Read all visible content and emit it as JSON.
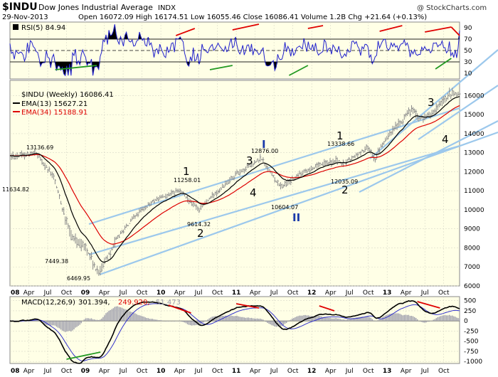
{
  "header": {
    "symbol": "$INDU",
    "name": "Dow Jones Industrial Average",
    "exchange": "INDX",
    "watermark": "@ StockCharts.com",
    "date": "29-Nov-2013",
    "ohlc_line": "Open 16072.09  High 16174.51  Low 16055.46  Close 16086.41  Volume 1.2B  Chg +21.64 (+0.13%)"
  },
  "legend": {
    "rsi": "RSI(5) 84.94",
    "price": "$INDU (Weekly) 16086.41",
    "ema13": "EMA(13) 15627.21",
    "ema34": "EMA(34) 15188.91",
    "macd_name": "MACD(12,26,9)",
    "macd_v1": "301.394,",
    "macd_v2": "249.920,",
    "macd_v3": "51.473"
  },
  "colors": {
    "panel_bg": "#ffffe6",
    "rsi_line": "#2222cc",
    "ema13": "#000000",
    "ema34": "#dd0000",
    "price_bars": "#8a8a8a",
    "channel": "#9cc8ec",
    "divergence_red": "#e00000",
    "divergence_green": "#229922",
    "wave_label_blue": "#1a3aaa",
    "macd_hist": "#9a9aaa"
  },
  "x_axis": {
    "labels": [
      "08",
      "Apr",
      "Jul",
      "Oct",
      "09",
      "Apr",
      "Jul",
      "Oct",
      "10",
      "Apr",
      "Jul",
      "Oct",
      "11",
      "Apr",
      "Jul",
      "Oct",
      "12",
      "Apr",
      "Jul",
      "Oct",
      "13",
      "Apr",
      "Jul",
      "Oct"
    ],
    "bold_labels": [
      "08",
      "09",
      "10",
      "11",
      "12",
      "13"
    ]
  },
  "chart_data": [
    {
      "type": "line",
      "panel": "RSI(5)",
      "yaxis_ticks": [
        "90",
        "70",
        "50",
        "30",
        "10"
      ],
      "ylim": [
        0,
        100
      ],
      "reference_lines": [
        70,
        50,
        30
      ],
      "series": [
        {
          "name": "RSI(5)",
          "last_value": 84.94
        }
      ]
    },
    {
      "type": "bar",
      "panel": "$INDU (Weekly)",
      "yaxis_ticks": [
        "16000",
        "15000",
        "14000",
        "13000",
        "12000",
        "11000",
        "10000",
        "9000",
        "8000",
        "7000",
        "6000"
      ],
      "ylim": [
        6000,
        16800
      ],
      "series": [
        {
          "name": "$INDU (Weekly)",
          "last_value": 16086.41,
          "x": [
            "2008-01",
            "2008-05",
            "2008-08",
            "2008-10",
            "2008-11",
            "2009-01",
            "2009-03",
            "2009-06",
            "2009-09",
            "2009-12",
            "2010-04",
            "2010-07",
            "2010-10",
            "2011-01",
            "2011-05",
            "2011-08",
            "2011-10",
            "2011-12",
            "2012-05",
            "2012-06",
            "2012-10",
            "2012-11",
            "2013-01",
            "2013-05",
            "2013-06",
            "2013-08",
            "2013-11"
          ],
          "values": [
            12800,
            13000,
            11700,
            9300,
            8400,
            8100,
            6600,
            8500,
            9700,
            10500,
            11000,
            10000,
            11000,
            11900,
            12700,
            11200,
            11600,
            12100,
            12600,
            12400,
            13300,
            12700,
            13800,
            15300,
            14800,
            15000,
            16086
          ]
        },
        {
          "name": "EMA(13)",
          "last_value": 15627.21
        },
        {
          "name": "EMA(34)",
          "last_value": 15188.91
        }
      ],
      "annotations": [
        {
          "text": "13136.69",
          "x": "2008-05"
        },
        {
          "text": "11634.82",
          "x": "2008-01"
        },
        {
          "text": "7449.38",
          "x": "2008-11"
        },
        {
          "text": "6469.95",
          "x": "2009-03"
        },
        {
          "text": "11258.01",
          "x": "2010-04"
        },
        {
          "text": "9614.32",
          "x": "2010-07"
        },
        {
          "text": "12876.00",
          "x": "2011-05"
        },
        {
          "text": "10604.07",
          "x": "2011-10"
        },
        {
          "text": "13338.66",
          "x": "2012-05"
        },
        {
          "text": "12035.09",
          "x": "2012-06"
        }
      ],
      "wave_labels": [
        "1",
        "2",
        "3",
        "4",
        "I",
        "II",
        "1",
        "2",
        "3",
        "4"
      ]
    },
    {
      "type": "line",
      "panel": "MACD(12,26,9)",
      "yaxis_ticks": [
        "500",
        "250",
        "0",
        "-250",
        "-500",
        "-750",
        "-1000"
      ],
      "ylim": [
        -1050,
        600
      ],
      "series": [
        {
          "name": "MACD",
          "last_value": 301.394
        },
        {
          "name": "Signal",
          "last_value": 249.92
        },
        {
          "name": "Histogram",
          "last_value": 51.473
        }
      ]
    }
  ]
}
